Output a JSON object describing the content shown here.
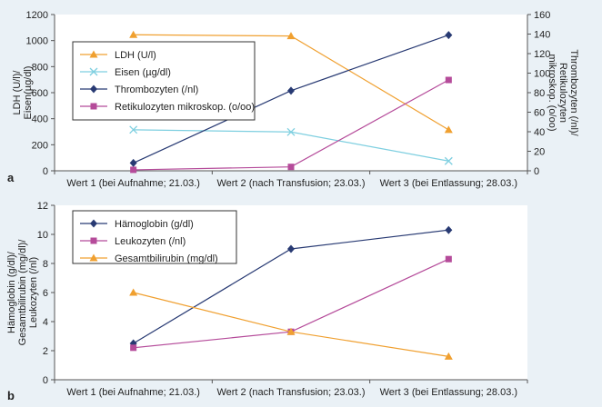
{
  "chart_data": [
    {
      "panel_label": "a",
      "type": "line",
      "categories": [
        "Wert 1 (bei Aufnahme; 21.03.)",
        "Wert 2 (nach Transfusion; 23.03.)",
        "Wert 3 (bei Entlassung; 28.03.)"
      ],
      "ylabel_left": [
        "LDH (U/l)/",
        "Eisen(µg/dl)"
      ],
      "ylabel_right": [
        "Thrombozyten (/nl)/",
        "Retikulozyten",
        "mikroskop. (o/oo)"
      ],
      "ylim_left": [
        0,
        1200
      ],
      "ylim_right": [
        0,
        160
      ],
      "yticks_left": [
        "0",
        "200",
        "400",
        "600",
        "800",
        "1000",
        "1200"
      ],
      "yticks_right": [
        "0",
        "20",
        "40",
        "60",
        "80",
        "100",
        "120",
        "140",
        "160"
      ],
      "grid": false,
      "legend_position": "top-left",
      "series": [
        {
          "name": "LDH (U/l)",
          "axis": "left",
          "color": "#f0a030",
          "marker": "triangle",
          "values": [
            1045,
            1035,
            315
          ]
        },
        {
          "name": "Eisen (µg/dl)",
          "axis": "left",
          "color": "#7ecfe0",
          "marker": "x",
          "values": [
            315,
            298,
            75
          ]
        },
        {
          "name": "Thrombozyten (/nl)",
          "axis": "right",
          "color": "#283a73",
          "marker": "diamond",
          "values": [
            8,
            82,
            139
          ]
        },
        {
          "name": "Retikulozyten mikroskop. (o/oo)",
          "axis": "right",
          "color": "#b54b9a",
          "marker": "square",
          "values": [
            1,
            4,
            93
          ]
        }
      ]
    },
    {
      "panel_label": "b",
      "type": "line",
      "categories": [
        "Wert 1 (bei Aufnahme; 21.03.)",
        "Wert 2 (nach Transfusion; 23.03.)",
        "Wert 3 (bei Entlassung; 28.03.)"
      ],
      "ylabel_left": [
        "Hämoglobin (g/dl)/",
        "Gesamtbilirubin (mg/dl)/",
        "Leukozyten (/nl)"
      ],
      "ylim_left": [
        0,
        12
      ],
      "yticks_left": [
        "0",
        "2",
        "4",
        "6",
        "8",
        "10",
        "12"
      ],
      "grid": false,
      "legend_position": "top-left",
      "series": [
        {
          "name": "Hämoglobin (g/dl)",
          "axis": "left",
          "color": "#283a73",
          "marker": "diamond",
          "values": [
            2.5,
            9.0,
            10.3
          ]
        },
        {
          "name": "Leukozyten (/nl)",
          "axis": "left",
          "color": "#b54b9a",
          "marker": "square",
          "values": [
            2.2,
            3.3,
            8.3
          ]
        },
        {
          "name": "Gesamtbilirubin (mg/dl)",
          "axis": "left",
          "color": "#f0a030",
          "marker": "triangle",
          "values": [
            6.0,
            3.3,
            1.6
          ]
        }
      ]
    }
  ]
}
